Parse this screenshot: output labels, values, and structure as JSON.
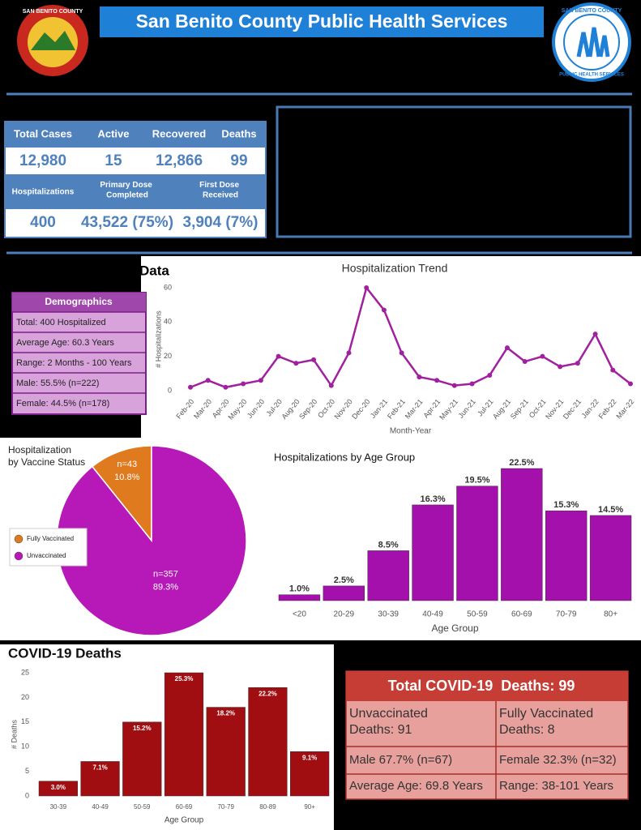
{
  "header": {
    "title": "San Benito County Public Health Services",
    "left_logo": "SAN BENITO COUNTY",
    "right_logo_top": "SAN BENITO COUNTY",
    "right_logo_bottom": "PUBLIC HEALTH SERVICES"
  },
  "stats": {
    "rows": [
      [
        "Total Cases",
        "Active",
        "Recovered",
        "Deaths"
      ],
      [
        "12,980",
        "15",
        "12,866",
        "99"
      ],
      [
        "Hospitalizations",
        "Primary Dose Completed",
        "First Dose Received"
      ],
      [
        "400",
        "43,522 (75%)",
        "3,904 (7%)"
      ]
    ]
  },
  "section_label": "Data",
  "demographics": {
    "title": "Demographics",
    "rows": [
      "Total: 400 Hospitalized",
      "Average Age: 60.3 Years",
      "Range: 2 Months - 100 Years",
      "Male: 55.5% (n=222)",
      "Female: 44.5% (n=178)"
    ]
  },
  "deaths_summary": {
    "title": "Total COVID-19  Deaths: 99",
    "rows": [
      [
        "Unvaccinated Deaths: 91",
        "Fully Vaccinated Deaths: 8"
      ],
      [
        "Male 67.7% (n=67)",
        "Female 32.3% (n=32)"
      ],
      [
        "Average Age: 69.8 Years",
        "Range: 38-101 Years"
      ]
    ]
  },
  "chart_data": [
    {
      "type": "line",
      "title": "Hospitalization Trend",
      "xlabel": "Month-Year",
      "ylabel": "# Hospitalizations",
      "categories": [
        "Feb-20",
        "Mar-20",
        "Apr-20",
        "May-20",
        "Jun-20",
        "Jul-20",
        "Aug-20",
        "Sep-20",
        "Oct-20",
        "Nov-20",
        "Dec-20",
        "Jan-21",
        "Feb-21",
        "Mar-21",
        "Apr-21",
        "May-21",
        "Jun-21",
        "Jul-21",
        "Aug-21",
        "Sep-21",
        "Oct-21",
        "Nov-21",
        "Dec-21",
        "Jan-22",
        "Feb-22",
        "Mar-22"
      ],
      "values": [
        2,
        6,
        2,
        4,
        6,
        20,
        16,
        18,
        3,
        22,
        60,
        47,
        22,
        8,
        6,
        3,
        4,
        9,
        25,
        17,
        20,
        14,
        16,
        33,
        12,
        4
      ],
      "color": "#a020a0",
      "ylim": [
        0,
        60
      ],
      "yticks": [
        0,
        20,
        40,
        60
      ],
      "grid": false
    },
    {
      "type": "pie",
      "title": "Hospitalization by Vaccine Status",
      "categories": [
        "Fully Vaccinated",
        "Unvaccinated"
      ],
      "values": [
        43,
        357
      ],
      "value_labels": [
        "n=43",
        "n=357"
      ],
      "share_labels": [
        "10.8%",
        "89.3%"
      ],
      "colors": [
        "#e07a1f",
        "#b619b8"
      ]
    },
    {
      "type": "bar",
      "title": "Hospitalizations by Age Group",
      "xlabel": "Age Group",
      "categories": [
        "<20",
        "20-29",
        "30-39",
        "40-49",
        "50-59",
        "60-69",
        "70-79",
        "80+"
      ],
      "values": [
        1.0,
        2.5,
        8.5,
        16.3,
        19.5,
        22.5,
        15.3,
        14.5
      ],
      "value_labels": [
        "1.0%",
        "2.5%",
        "8.5%",
        "16.3%",
        "19.5%",
        "22.5%",
        "15.3%",
        "14.5%"
      ],
      "color": "#a410ac"
    },
    {
      "type": "bar",
      "title": "COVID-19 Deaths",
      "xlabel": "Age Group",
      "ylabel": "# Deaths",
      "categories": [
        "30-39",
        "40-49",
        "50-59",
        "60-69",
        "70-79",
        "80-89",
        "90+"
      ],
      "values": [
        3,
        7,
        15,
        25,
        18,
        22,
        9
      ],
      "percent_labels": [
        "3.0%",
        "7.1%",
        "15.2%",
        "25.3%",
        "18.2%",
        "22.2%",
        "9.1%"
      ],
      "color": "#a00e12",
      "ylim": [
        0,
        25
      ],
      "yticks": [
        0,
        5,
        10,
        15,
        20,
        25
      ],
      "grid": false
    }
  ]
}
